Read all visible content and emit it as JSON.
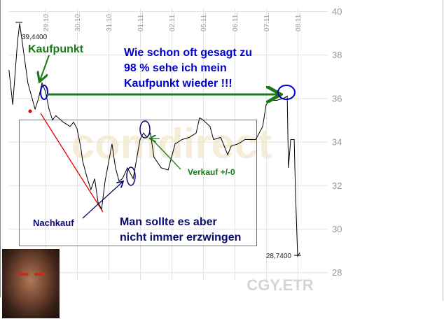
{
  "chart_data": {
    "type": "line",
    "symbol": "CGY.ETR",
    "watermark": "comdirect",
    "x_tick_labels": [
      "29.10.",
      "30.10.",
      "31.10.",
      "01.11.",
      "02.11.",
      "05.11.",
      "06.11.",
      "07.11.",
      "08.11."
    ],
    "y_ticks": [
      28,
      30,
      32,
      34,
      36,
      38,
      40
    ],
    "ylim": [
      27.5,
      40.2
    ],
    "grid": true,
    "high_label": "39,4400",
    "low_label": "28,7400",
    "series": [
      {
        "x": [
          -1.16,
          -1.04,
          -0.89,
          -0.82,
          -0.71,
          -0.56,
          -0.33,
          -0.22,
          -0.11,
          0,
          0.11,
          0.22,
          0.33,
          0.56,
          0.78,
          0.89,
          1,
          1.11,
          1.18,
          1.33,
          1.44,
          1.56,
          1.67,
          1.78,
          1.89,
          2.11,
          2.22,
          2.33,
          2.44,
          2.6,
          2.78,
          3,
          3.11,
          3.22,
          3.33,
          3.44,
          3.67,
          3.89,
          4.11,
          4.33,
          4.56,
          4.78,
          4.89,
          5,
          5.22,
          5.33,
          5.56,
          5.78,
          5.89,
          6.11,
          6.33,
          6.67,
          6.89,
          7,
          7.11,
          7.33,
          7.56,
          7.67,
          7.71,
          7.78,
          7.89,
          7.93,
          8,
          8.07
        ],
        "y": [
          37.3,
          35.7,
          38.6,
          39.44,
          38.3,
          36.7,
          35.5,
          36.0,
          36.7,
          36.3,
          35.5,
          35.0,
          35.2,
          34.9,
          34.7,
          34.9,
          34.6,
          33.8,
          33.1,
          32.3,
          31.8,
          32.3,
          31.2,
          30.9,
          32.2,
          33.9,
          32.8,
          32.2,
          32.3,
          32.8,
          32.3,
          34.1,
          34.4,
          34.2,
          34.4,
          33.3,
          32.8,
          32.7,
          33.9,
          34.1,
          34.2,
          34.4,
          35.1,
          35.0,
          34.7,
          34.1,
          34.2,
          33.4,
          33.8,
          33.9,
          34.1,
          34.1,
          34.7,
          35.7,
          35.9,
          35.9,
          36.0,
          36.1,
          32.8,
          34.1,
          34.1,
          31.8,
          28.74,
          28.9
        ]
      }
    ],
    "annotations": {
      "kaufpunkt": "Kaufpunkt",
      "main_line1": "Wie schon oft gesagt zu",
      "main_line2": "98 % sehe ich mein",
      "main_line3": "Kaufpunkt wieder !!!",
      "verkauf": "Verkauf +/-0",
      "nachkauf": "Nachkauf",
      "box_line1": "Man sollte es aber",
      "box_line2": "nicht immer erzwingen"
    },
    "colors": {
      "price": "#000000",
      "green": "#1a7a1a",
      "blue": "#0000cc",
      "navy": "#0a0a6e",
      "red": "#e00000",
      "grid": "#e4e4e4"
    }
  }
}
